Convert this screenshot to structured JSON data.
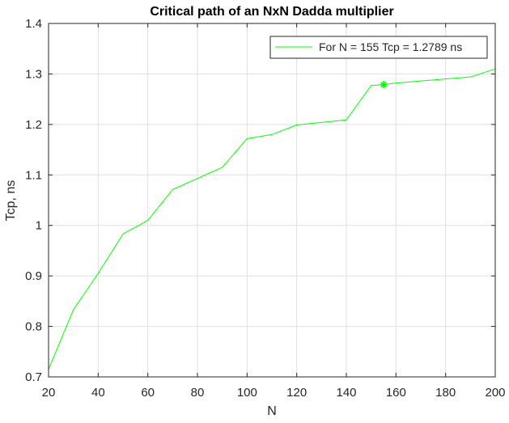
{
  "chart_data": {
    "type": "line",
    "title": "Critical path of an NxN Dadda multiplier",
    "xlabel": "N",
    "ylabel": "Tcp, ns",
    "xlim": [
      20,
      200
    ],
    "ylim": [
      0.7,
      1.4
    ],
    "xticks": [
      "20",
      "40",
      "60",
      "80",
      "100",
      "120",
      "140",
      "160",
      "180",
      "200"
    ],
    "yticks": [
      "0.7",
      "0.8",
      "0.9",
      "1",
      "1.1",
      "1.2",
      "1.3",
      "1.4"
    ],
    "grid": true,
    "legend_position": "top-right",
    "series": [
      {
        "name": "For N = 155 Tcp = 1.2789 ns",
        "color": "#00ff00",
        "x": [
          20,
          30,
          40,
          50,
          60,
          70,
          80,
          90,
          100,
          110,
          120,
          130,
          140,
          150,
          155,
          160,
          170,
          180,
          190,
          200
        ],
        "y": [
          0.715,
          0.833,
          0.905,
          0.983,
          1.01,
          1.071,
          1.093,
          1.115,
          1.172,
          1.18,
          1.199,
          1.204,
          1.209,
          1.277,
          1.2789,
          1.282,
          1.286,
          1.29,
          1.294,
          1.31
        ]
      }
    ],
    "marker": {
      "x": 155,
      "y": 1.2789,
      "symbol": "asterisk",
      "color": "#00ff00"
    }
  }
}
